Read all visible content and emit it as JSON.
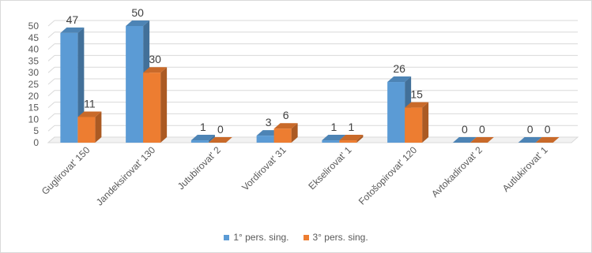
{
  "chart_data": {
    "type": "bar",
    "categories": [
      "Guglirovat' 150",
      "Jandeksirovat' 130",
      "Jutubirovat' 2",
      "Vordirovat' 31",
      "Ekselirovat' 1",
      "Fotošopirovat' 120",
      "Avtokadirovat' 2",
      "Autlukirovat' 1"
    ],
    "series": [
      {
        "name": "1° pers. sing.",
        "values": [
          47,
          50,
          1,
          3,
          1,
          26,
          0,
          0
        ],
        "color": "#5b9bd5"
      },
      {
        "name": "3° pers. sing.",
        "values": [
          11,
          30,
          0,
          6,
          1,
          15,
          0,
          0
        ],
        "color": "#ed7d31"
      }
    ],
    "yticks": [
      0,
      5,
      10,
      15,
      20,
      25,
      30,
      35,
      40,
      45,
      50
    ],
    "ylim": [
      0,
      50
    ],
    "title": "",
    "xlabel": "",
    "ylabel": "",
    "grid": true,
    "legend": "bottom",
    "three_d": true
  }
}
